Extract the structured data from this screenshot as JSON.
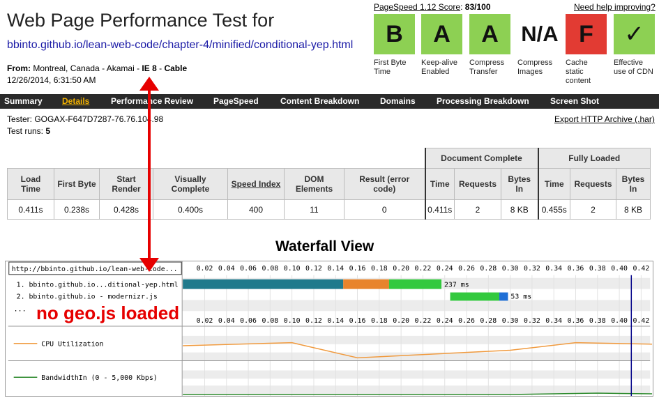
{
  "header": {
    "title": "Web Page Performance Test for",
    "url": "bbinto.github.io/lean-web-code/chapter-4/minified/conditional-yep.html",
    "from_label": "From:",
    "from_value": "Montreal, Canada - Akamai - ",
    "browser": "IE 8",
    "dash": " - ",
    "connection": "Cable",
    "date": "12/26/2014, 6:31:50 AM"
  },
  "pagespeed": {
    "label": "PageSpeed 1.12 Score",
    "colon": ":",
    "score": "83/100",
    "help_link": "Need help improving?"
  },
  "grades": [
    {
      "grade": "B",
      "label": "First Byte Time",
      "status": "green"
    },
    {
      "grade": "A",
      "label": "Keep-alive Enabled",
      "status": "green"
    },
    {
      "grade": "A",
      "label": "Compress Transfer",
      "status": "green"
    },
    {
      "grade": "N/A",
      "label": "Compress Images",
      "status": "none"
    },
    {
      "grade": "F",
      "label": "Cache static content",
      "status": "red"
    },
    {
      "grade": "✓",
      "label": "Effective use of CDN",
      "status": "green"
    }
  ],
  "colors": {
    "green": "#8dd053",
    "red": "#e23b33",
    "nav_bg": "#2a2a2a",
    "nav_active": "#f0b000"
  },
  "nav": [
    "Summary",
    "Details",
    "Performance Review",
    "PageSpeed",
    "Content Breakdown",
    "Domains",
    "Processing Breakdown",
    "Screen Shot"
  ],
  "nav_active": "Details",
  "test_info": {
    "tester": "Tester: GOGAX-F647D7287-76.76.104.98",
    "runs_label": "Test runs: ",
    "runs": "5",
    "export": "Export HTTP Archive (.har)"
  },
  "results": {
    "group_document": "Document Complete",
    "group_fully": "Fully Loaded",
    "headers": [
      "Load Time",
      "First Byte",
      "Start Render",
      "Visually Complete",
      "Speed Index",
      "DOM Elements",
      "Result (error code)",
      "Time",
      "Requests",
      "Bytes In",
      "Time",
      "Requests",
      "Bytes In"
    ],
    "values": [
      "0.411s",
      "0.238s",
      "0.428s",
      "0.400s",
      "400",
      "11",
      "0",
      "0.411s",
      "2",
      "8 KB",
      "0.455s",
      "2",
      "8 KB"
    ]
  },
  "waterfall": {
    "title": "Waterfall View",
    "page_url": "http://bbinto.github.io/lean-web-code...",
    "ticks": [
      "0.02",
      "0.04",
      "0.06",
      "0.08",
      "0.10",
      "0.12",
      "0.14",
      "0.16",
      "0.18",
      "0.20",
      "0.22",
      "0.24",
      "0.26",
      "0.28",
      "0.30",
      "0.32",
      "0.34",
      "0.36",
      "0.38",
      "0.40",
      "0.42"
    ],
    "requests": [
      {
        "label": "1. bbinto.github.io...ditional-yep.html",
        "duration": "237 ms",
        "start": 0.0,
        "dns_end": 0.147,
        "connect_end": 0.189,
        "ttfb_end": 0.237,
        "download_end": 0.237
      },
      {
        "label": "2. bbinto.github.io - modernizr.js",
        "duration": "53 ms",
        "start": 0.245,
        "dns_end": 0.245,
        "connect_end": 0.245,
        "ttfb_end": 0.29,
        "download_end": 0.298
      }
    ],
    "more": "...",
    "cpu_label": "CPU Utilization",
    "bandwidth_label": "BandwidthIn (0 - 5,000 Kbps)",
    "timeline_max": 0.43,
    "dom_marker": 0.411,
    "colors": {
      "dns": "#1f7a8c",
      "connect": "#e8842c",
      "ttfb": "#33c93e",
      "download": "#1f6fd6",
      "cpu": "#f09a3e",
      "bandwidth": "#2c8a2c",
      "marker": "#000088"
    },
    "cpu_points": [
      [
        0.0,
        0.55
      ],
      [
        0.1,
        0.45
      ],
      [
        0.16,
        0.95
      ],
      [
        0.3,
        0.7
      ],
      [
        0.36,
        0.45
      ],
      [
        0.43,
        0.5
      ]
    ]
  },
  "annotation": {
    "text": "no geo.js loaded",
    "color": "#e60000"
  }
}
